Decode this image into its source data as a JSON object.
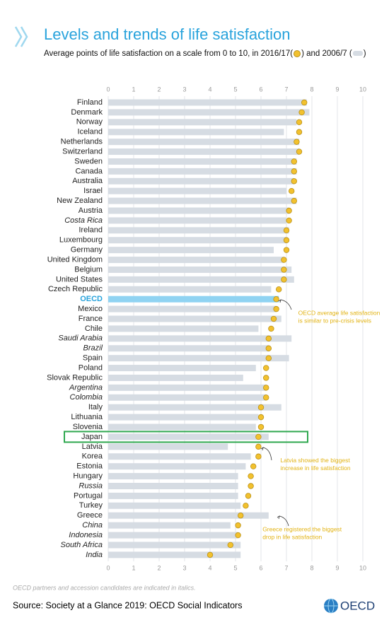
{
  "header": {
    "title": "Levels and trends of life satisfaction",
    "subtitle": [
      "Average points of life satisfaction on a scale from 0 to 10, in",
      "(",
      ") and",
      "(",
      ")"
    ]
  },
  "chart_data": {
    "type": "dot-bar",
    "categories": [
      "Finland",
      "Denmark",
      "Norway",
      "Iceland",
      "Netherlands",
      "Switzerland",
      "Sweden",
      "Canada",
      "Australia",
      "Israel",
      "New Zealand",
      "Austria",
      "Costa Rica",
      "Ireland",
      "Luxembourg",
      "Germany",
      "United Kingdom",
      "Belgium",
      "United States",
      "Czech Republic",
      "OECD",
      "Mexico",
      "France",
      "Chile",
      "Saudi Arabia",
      "Brazil",
      "Spain",
      "Poland",
      "Slovak Republic",
      "Argentina",
      "Colombia",
      "Italy",
      "Lithuania",
      "Slovenia",
      "Japan",
      "Latvia",
      "Korea",
      "Estonia",
      "Hungary",
      "Russia",
      "Portugal",
      "Turkey",
      "Greece",
      "China",
      "Indonesia",
      "South Africa",
      "India"
    ],
    "series": [
      {
        "name": "2016/17",
        "color": "#f2c12e",
        "values": [
          7.7,
          7.6,
          7.5,
          7.5,
          7.4,
          7.5,
          7.3,
          7.3,
          7.3,
          7.2,
          7.3,
          7.1,
          7.1,
          7.0,
          7.0,
          7.0,
          6.9,
          6.9,
          6.9,
          6.7,
          6.6,
          6.6,
          6.5,
          6.4,
          6.3,
          6.3,
          6.3,
          6.2,
          6.2,
          6.2,
          6.2,
          6.0,
          6.0,
          6.0,
          5.9,
          5.9,
          5.9,
          5.7,
          5.6,
          5.6,
          5.5,
          5.4,
          5.2,
          5.1,
          5.1,
          4.8,
          4.0
        ]
      },
      {
        "name": "2006/7",
        "color": "#d6dce3",
        "values": [
          7.8,
          7.9,
          7.4,
          6.9,
          7.5,
          7.5,
          7.4,
          7.4,
          7.3,
          7.0,
          7.4,
          7.1,
          7.0,
          7.1,
          7.0,
          6.5,
          6.9,
          7.2,
          7.3,
          6.4,
          6.7,
          6.6,
          6.8,
          5.9,
          7.2,
          6.3,
          7.1,
          5.8,
          5.3,
          6.2,
          6.2,
          6.8,
          5.9,
          5.8,
          6.3,
          4.7,
          5.6,
          5.4,
          5.1,
          5.1,
          5.1,
          5.2,
          6.3,
          4.8,
          5.1,
          5.2,
          5.2
        ]
      }
    ],
    "xlim": [
      0,
      10
    ],
    "xticks": [
      0,
      1,
      2,
      3,
      4,
      5,
      6,
      7,
      8,
      9,
      10
    ],
    "grid": true,
    "italic_categories": [
      "Costa Rica",
      "Saudi Arabia",
      "Brazil",
      "Argentina",
      "Colombia",
      "Russia",
      "China",
      "Indonesia",
      "South Africa",
      "India"
    ],
    "highlight": "OECD",
    "highlight_color": "#8fd3f2",
    "boxed": "Japan",
    "box_color": "#2fa84f",
    "annotations": [
      {
        "category": "OECD",
        "lines": [
          "OECD average life satisfaction",
          "is similar to pre-crisis levels"
        ]
      },
      {
        "category": "Latvia",
        "lines": [
          "Latvia showed the biggest",
          "increase in life satisfaction"
        ]
      },
      {
        "category": "Greece",
        "lines": [
          "Greece registered the biggest",
          "drop in life satisfaction"
        ]
      }
    ]
  },
  "footer": {
    "note": "OECD partners and accession candidates are indicated in italics.",
    "source": "Source: Society at a Glance 2019: OECD Social Indicators",
    "logo": "OECD"
  }
}
